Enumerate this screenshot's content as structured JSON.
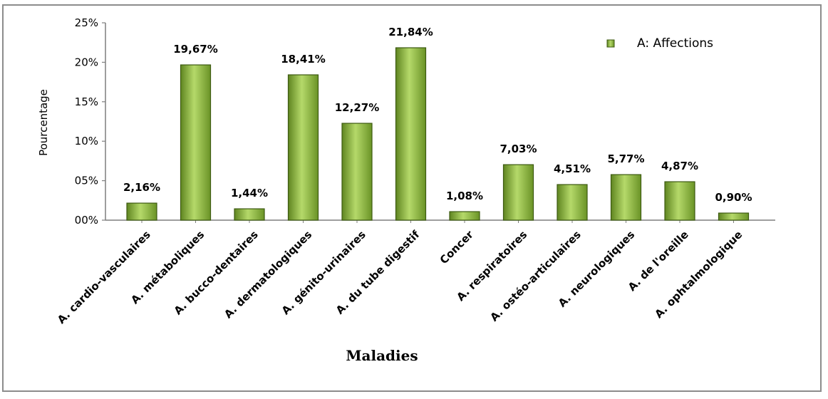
{
  "chart_data": {
    "type": "bar",
    "categories": [
      "A. cardio-vasculaires",
      "A. métaboliques",
      "A. bucco-dentaires",
      "A. dermatologiques",
      "A. génito-urinaires",
      "A. du tube digestif",
      "Concer",
      "A. respiratoires",
      "A. ostéo-articulaires",
      "A. neurologiques",
      "A. de l'oreille",
      "A. ophtalmologique"
    ],
    "series": [
      {
        "name": "A: Affections",
        "values": [
          2.16,
          19.67,
          1.44,
          18.41,
          12.27,
          21.84,
          1.08,
          7.03,
          4.51,
          5.77,
          4.87,
          0.9
        ],
        "data_labels": [
          "2,16%",
          "19,67%",
          "1,44%",
          "18,41%",
          "12,27%",
          "21,84%",
          "1,08%",
          "7,03%",
          "4,51%",
          "5,77%",
          "4,87%",
          "0,90%"
        ]
      }
    ],
    "yticks": [
      0,
      5,
      10,
      15,
      20,
      25
    ],
    "ytick_labels": [
      "00%",
      "05%",
      "10%",
      "15%",
      "20%",
      "25%"
    ],
    "ylim": [
      0,
      25
    ],
    "xlabel": "Maladies",
    "ylabel": "Pourcentage",
    "legend_position": "top-right",
    "grid": false,
    "bar_color": "#8db33a",
    "bar_edge_color": "#3d5a12"
  }
}
